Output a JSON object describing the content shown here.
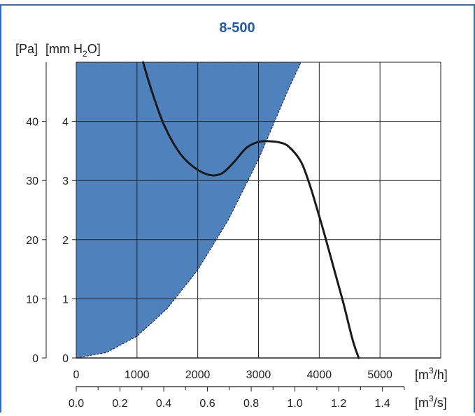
{
  "colors": {
    "border": "#2f6db3",
    "title": "#1f5aa8",
    "fill": "#4f81bd",
    "grid": "#222222",
    "curve": "#1a1a1a"
  },
  "chart_data": {
    "type": "line",
    "title": "8-500",
    "ylabel_pa": "[Pa]",
    "ylabel_mm": "[mm H",
    "ylabel_mm_sub": "2",
    "ylabel_mm_end": "O]",
    "xunit_m3h": "[m",
    "xunit_m3h_sup": "3",
    "xunit_m3h_end": "/h]",
    "xunit_m3s": "[m",
    "xunit_m3s_sup": "3",
    "xunit_m3s_end": "/s]",
    "xlim": [
      0,
      6000
    ],
    "ylim": [
      0,
      49
    ],
    "x_ticks_m3h": [
      "0",
      "1000",
      "2000",
      "3000",
      "4000",
      "5000"
    ],
    "x_ticks_m3s": [
      "0.0",
      "0.2",
      "0.4",
      "0.6",
      "0.8",
      "1.0",
      "1.2",
      "1.4"
    ],
    "y_ticks_pa": [
      "0",
      "10",
      "20",
      "30",
      "40"
    ],
    "y_ticks_mm": [
      "0",
      "1",
      "2",
      "3",
      "4"
    ],
    "grid": true,
    "series": [
      {
        "kind": "fan-curve",
        "x": [
          1100,
          1250,
          1450,
          1700,
          1950,
          2200,
          2400,
          2600,
          2800,
          3000,
          3200,
          3350,
          3500,
          3700,
          3850,
          4000,
          4100,
          4250,
          4400,
          4550,
          4650
        ],
        "y": [
          49,
          44,
          38.5,
          34,
          31.5,
          30.3,
          30.6,
          32.5,
          34.8,
          35.8,
          35.9,
          35.7,
          35,
          32.5,
          28.5,
          23.5,
          20,
          14.5,
          9,
          3,
          0
        ]
      },
      {
        "kind": "system-resistance-area",
        "x": [
          0,
          500,
          1000,
          1500,
          2000,
          2500,
          3000,
          3500,
          3700
        ],
        "y": [
          0,
          0.9,
          3.6,
          8.2,
          14.6,
          22.8,
          32.9,
          44.7,
          49
        ]
      }
    ]
  }
}
